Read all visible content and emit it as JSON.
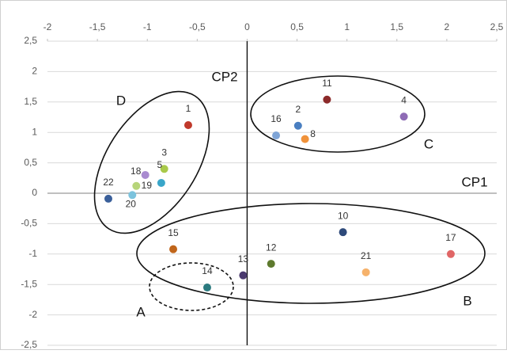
{
  "chart_data": {
    "type": "scatter",
    "point_labels": [
      "1",
      "2",
      "3",
      "4",
      "5",
      "8",
      "10",
      "11",
      "12",
      "13",
      "14",
      "15",
      "16",
      "17",
      "18",
      "19",
      "20",
      "21",
      "22"
    ],
    "x": [
      -0.59,
      0.51,
      -0.83,
      1.57,
      -0.86,
      0.58,
      0.96,
      0.8,
      0.24,
      -0.04,
      -0.4,
      -0.74,
      0.29,
      2.04,
      -1.02,
      -1.11,
      -1.15,
      1.19,
      -1.39
    ],
    "values": [
      1.12,
      1.11,
      0.4,
      1.26,
      0.17,
      0.89,
      -0.64,
      1.54,
      -1.16,
      -1.35,
      -1.55,
      -0.92,
      0.95,
      -1.0,
      0.3,
      0.12,
      -0.03,
      -1.3,
      -0.09
    ],
    "colors": [
      "#c0392b",
      "#4a7fc1",
      "#a9c94a",
      "#8e6bb5",
      "#3aa6c9",
      "#f0923a",
      "#2e4a7a",
      "#8c2a2a",
      "#5e7a2e",
      "#4a3a6e",
      "#2b7a7f",
      "#c0651a",
      "#7ea4d6",
      "#e06666",
      "#a98bd0",
      "#b7d57a",
      "#7cc3dd",
      "#f6b26b",
      "#3a5f9a"
    ],
    "xlim": [
      -2,
      2.5
    ],
    "ylim": [
      -2.5,
      2.5
    ],
    "xticks": [
      -2,
      {
        "value": -1.5,
        "label": "-1,5"
      },
      -1,
      {
        "value": -0.5,
        "label": "-0,5"
      },
      0,
      {
        "value": 0.5,
        "label": "0,5"
      },
      1,
      {
        "value": 1.5,
        "label": "1,5"
      },
      2,
      {
        "value": 2.5,
        "label": "2,5"
      }
    ],
    "yticks": [
      {
        "value": -2.5,
        "label": "-2,5"
      },
      -2,
      {
        "value": -1.5,
        "label": "-1,5"
      },
      -1,
      {
        "value": -0.5,
        "label": "-0,5"
      },
      0,
      {
        "value": 0.5,
        "label": "0,5"
      },
      1,
      {
        "value": 1.5,
        "label": "1,5"
      },
      2,
      {
        "value": 2.5,
        "label": "2,5"
      }
    ],
    "grid": true,
    "annotations": [
      "CP1",
      "CP2",
      "A",
      "B",
      "C",
      "D"
    ]
  }
}
